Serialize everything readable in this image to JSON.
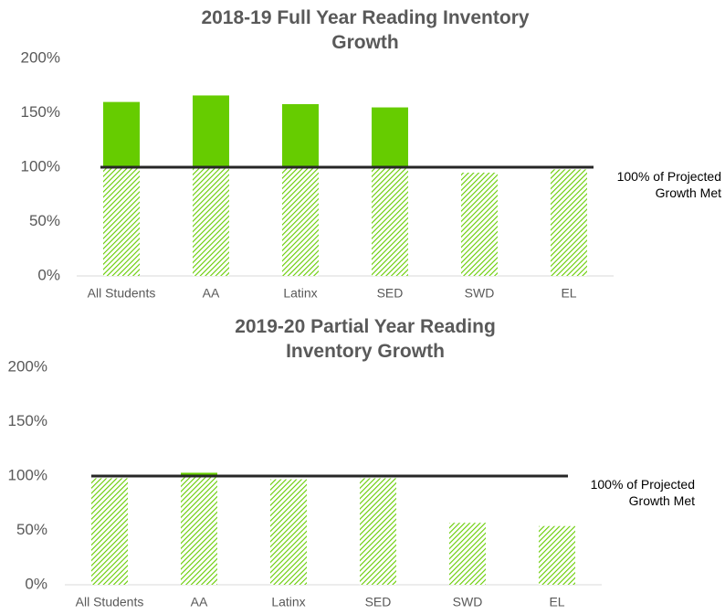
{
  "chart_data": [
    {
      "type": "bar",
      "title": "2018-19 Full Year Reading Inventory Growth",
      "categories": [
        "All Students",
        "AA",
        "Latinx",
        "SED",
        "SWD",
        "EL"
      ],
      "values": [
        160,
        166,
        158,
        155,
        95,
        98
      ],
      "color": "#66cc00",
      "ylim": [
        0,
        200
      ],
      "yticks": [
        {
          "value": 0,
          "label": "0%"
        },
        {
          "value": 50,
          "label": "50%"
        },
        {
          "value": 100,
          "label": "100%"
        },
        {
          "value": 150,
          "label": "150%"
        },
        {
          "value": 200,
          "label": "200%"
        }
      ],
      "reference_line": {
        "value": 100,
        "label": "100% of Projected Growth Met"
      }
    },
    {
      "type": "bar",
      "title": "2019-20 Partial Year Reading Inventory Growth",
      "categories": [
        "All Students",
        "AA",
        "Latinx",
        "SED",
        "SWD",
        "EL"
      ],
      "values": [
        98,
        103,
        97,
        98,
        57,
        54
      ],
      "color": "#66cc00",
      "ylim": [
        0,
        200
      ],
      "yticks": [
        {
          "value": 0,
          "label": "0%"
        },
        {
          "value": 50,
          "label": "50%"
        },
        {
          "value": 100,
          "label": "100%"
        },
        {
          "value": 150,
          "label": "150%"
        },
        {
          "value": 200,
          "label": "200%"
        }
      ],
      "reference_line": {
        "value": 100,
        "label": "100% of Projected Growth Met"
      }
    }
  ]
}
